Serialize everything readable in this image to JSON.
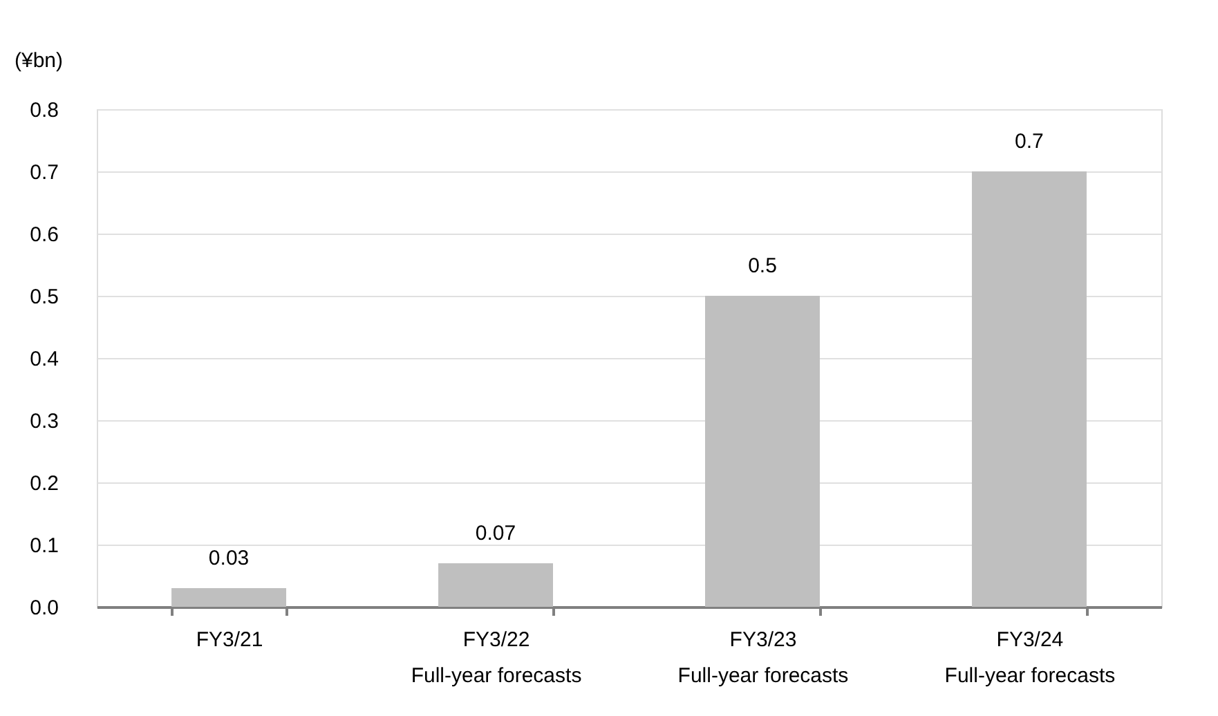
{
  "chart_data": {
    "type": "bar",
    "ylabel": "(¥bn)",
    "categories": [
      "FY3/21",
      "FY3/22\nFull-year forecasts",
      "FY3/23\nFull-year forecasts",
      "FY3/24\nFull-year forecasts"
    ],
    "values": [
      0.03,
      0.07,
      0.5,
      0.7
    ],
    "color": "#bfbfbf",
    "data_labels": true,
    "ylim": [
      0,
      0.8
    ],
    "yticks": [
      {
        "value": 0,
        "label": "0.0"
      },
      {
        "value": 0.1,
        "label": "0.1"
      },
      {
        "value": 0.2,
        "label": "0.2"
      },
      {
        "value": 0.3,
        "label": "0.3"
      },
      {
        "value": 0.4,
        "label": "0.4"
      },
      {
        "value": 0.5,
        "label": "0.5"
      },
      {
        "value": 0.6,
        "label": "0.6"
      },
      {
        "value": 0.7,
        "label": "0.7"
      },
      {
        "value": 0.8,
        "label": "0.8"
      }
    ],
    "grid": "y"
  }
}
